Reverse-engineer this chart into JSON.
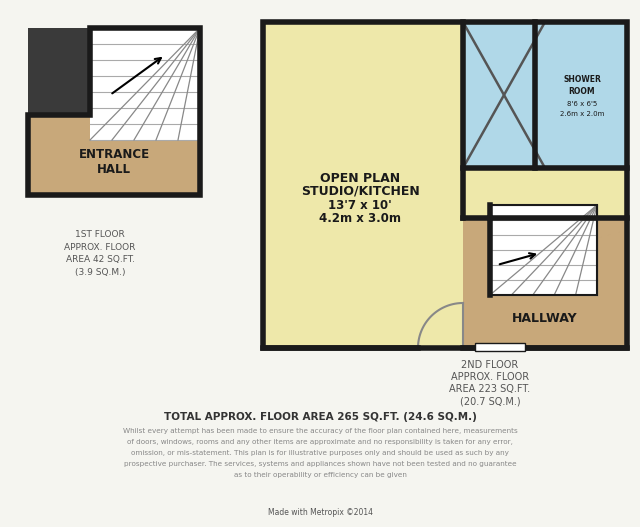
{
  "bg_color": "#f5f5f0",
  "wall_color": "#1a1a1a",
  "wall_lw": 4.0,
  "floor_yellow": "#eee8aa",
  "floor_blue": "#b0d8e8",
  "floor_tan": "#c8a87a",
  "floor_white": "#ffffff",
  "floor2_info": "2ND FLOOR\nAPPROX. FLOOR\nAREA 223 SQ.FT.\n(20.7 SQ.M.)",
  "total_area": "TOTAL APPROX. FLOOR AREA 265 SQ.FT. (24.6 SQ.M.)",
  "disclaimer_line1": "Whilst every attempt has been made to ensure the accuracy of the floor plan contained here, measurements",
  "disclaimer_line2": "of doors, windows, rooms and any other items are approximate and no responsibility is taken for any error,",
  "disclaimer_line3": "omission, or mis-statement. This plan is for illustrative purposes only and should be used as such by any",
  "disclaimer_line4": "prospective purchaser. The services, systems and appliances shown have not been tested and no guarantee",
  "disclaimer_line5": "as to their operability or efficiency can be given",
  "made_with": "Made with Metropix ©2014",
  "floor1_info": "1ST FLOOR\nAPPROX. FLOOR\nAREA 42 SQ.FT.\n(3.9 SQ.M.)",
  "entrance_hall": "ENTRANCE\nHALL",
  "open_plan_line1": "OPEN PLAN",
  "open_plan_line2": "STUDIO/KITCHEN",
  "open_plan_line3": "13'7 x 10'",
  "open_plan_line4": "4.2m x 3.0m",
  "shower_room_line1": "SHOWER",
  "shower_room_line2": "ROOM",
  "shower_room_line3": "8'6 x 6'5",
  "shower_room_line4": "2.6m x 2.0m",
  "hallway": "HALLWAY",
  "gray_stair": "#999999",
  "light_gray": "#cccccc"
}
